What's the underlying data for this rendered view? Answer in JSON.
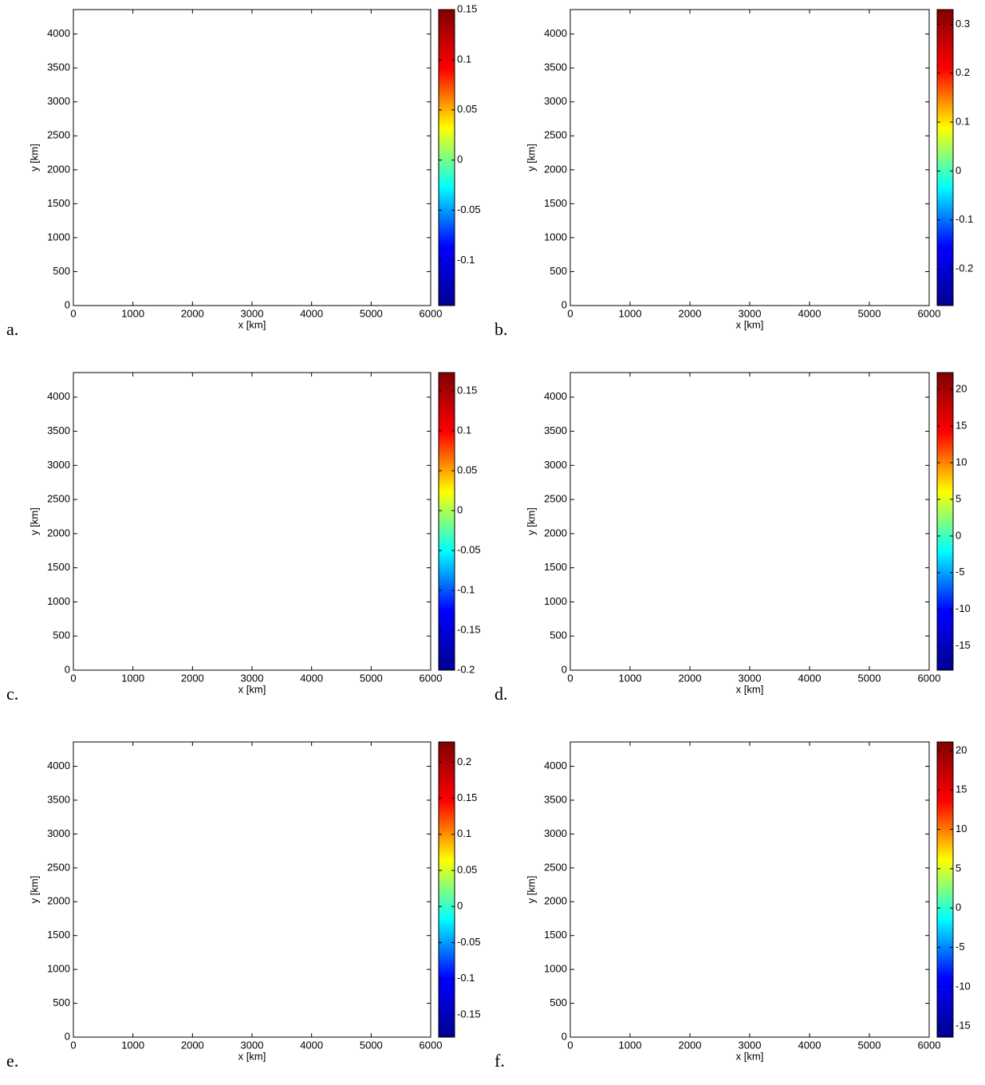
{
  "chart_data": [
    {
      "type": "contour",
      "label": "a.",
      "xlabel": "x [km]",
      "ylabel": "y [km]",
      "xlim": [
        0,
        6000
      ],
      "ylim": [
        0,
        4360
      ],
      "xticks": [
        0,
        1000,
        2000,
        3000,
        4000,
        5000,
        6000
      ],
      "yticks": [
        0,
        500,
        1000,
        1500,
        2000,
        2500,
        3000,
        3500,
        4000
      ],
      "clim": [
        -0.145,
        0.15
      ],
      "cticks": [
        -0.1,
        -0.05,
        0,
        0.05,
        0.1,
        0.15
      ],
      "colormap": [
        "#00008f",
        "#0000ff",
        "#00ffff",
        "#ffff00",
        "#ff0000",
        "#800000"
      ]
    },
    {
      "type": "contour",
      "label": "b.",
      "xlabel": "x [km]",
      "ylabel": "y [km]",
      "xlim": [
        0,
        6000
      ],
      "ylim": [
        0,
        4360
      ],
      "xticks": [
        0,
        1000,
        2000,
        3000,
        4000,
        5000,
        6000
      ],
      "yticks": [
        0,
        500,
        1000,
        1500,
        2000,
        2500,
        3000,
        3500,
        4000
      ],
      "clim": [
        -0.275,
        0.33
      ],
      "cticks": [
        -0.2,
        -0.1,
        0,
        0.1,
        0.2,
        0.3
      ],
      "colormap": [
        "#00008f",
        "#0000ff",
        "#00ffff",
        "#ffff00",
        "#ff0000",
        "#800000"
      ]
    },
    {
      "type": "contour",
      "label": "c.",
      "xlabel": "x [km]",
      "ylabel": "y [km]",
      "xlim": [
        0,
        6000
      ],
      "ylim": [
        0,
        4360
      ],
      "xticks": [
        0,
        1000,
        2000,
        3000,
        4000,
        5000,
        6000
      ],
      "yticks": [
        0,
        500,
        1000,
        1500,
        2000,
        2500,
        3000,
        3500,
        4000
      ],
      "clim": [
        -0.2,
        0.173
      ],
      "cticks": [
        -0.2,
        -0.15,
        -0.1,
        -0.05,
        0,
        0.05,
        0.1,
        0.15
      ],
      "colormap": [
        "#00008f",
        "#0000ff",
        "#00ffff",
        "#ffff00",
        "#ff0000",
        "#800000"
      ]
    },
    {
      "type": "contour",
      "label": "d.",
      "xlabel": "x [km]",
      "ylabel": "y [km]",
      "xlim": [
        0,
        6000
      ],
      "ylim": [
        0,
        4360
      ],
      "xticks": [
        0,
        1000,
        2000,
        3000,
        4000,
        5000,
        6000
      ],
      "yticks": [
        0,
        500,
        1000,
        1500,
        2000,
        2500,
        3000,
        3500,
        4000
      ],
      "clim": [
        -18.3,
        22.3
      ],
      "cticks": [
        -15,
        -10,
        -5,
        0,
        5,
        10,
        15,
        20
      ],
      "colormap": [
        "#00008f",
        "#0000ff",
        "#00ffff",
        "#ffff00",
        "#ff0000",
        "#800000"
      ]
    },
    {
      "type": "contour",
      "label": "e.",
      "xlabel": "x [km]",
      "ylabel": "y [km]",
      "xlim": [
        0,
        6000
      ],
      "ylim": [
        0,
        4360
      ],
      "xticks": [
        0,
        1000,
        2000,
        3000,
        4000,
        5000,
        6000
      ],
      "yticks": [
        0,
        500,
        1000,
        1500,
        2000,
        2500,
        3000,
        3500,
        4000
      ],
      "clim": [
        -0.181,
        0.228
      ],
      "cticks": [
        -0.15,
        -0.1,
        -0.05,
        0,
        0.05,
        0.1,
        0.15,
        0.2
      ],
      "colormap": [
        "#00008f",
        "#0000ff",
        "#00ffff",
        "#ffff00",
        "#ff0000",
        "#800000"
      ]
    },
    {
      "type": "contour",
      "label": "f.",
      "xlabel": "x [km]",
      "ylabel": "y [km]",
      "xlim": [
        0,
        6000
      ],
      "ylim": [
        0,
        4360
      ],
      "xticks": [
        0,
        1000,
        2000,
        3000,
        4000,
        5000,
        6000
      ],
      "yticks": [
        0,
        500,
        1000,
        1500,
        2000,
        2500,
        3000,
        3500,
        4000
      ],
      "clim": [
        -16.4,
        21.1
      ],
      "cticks": [
        -15,
        -10,
        -5,
        0,
        5,
        10,
        15,
        20
      ],
      "colormap": [
        "#00008f",
        "#0000ff",
        "#00ffff",
        "#ffff00",
        "#ff0000",
        "#800000"
      ]
    }
  ]
}
